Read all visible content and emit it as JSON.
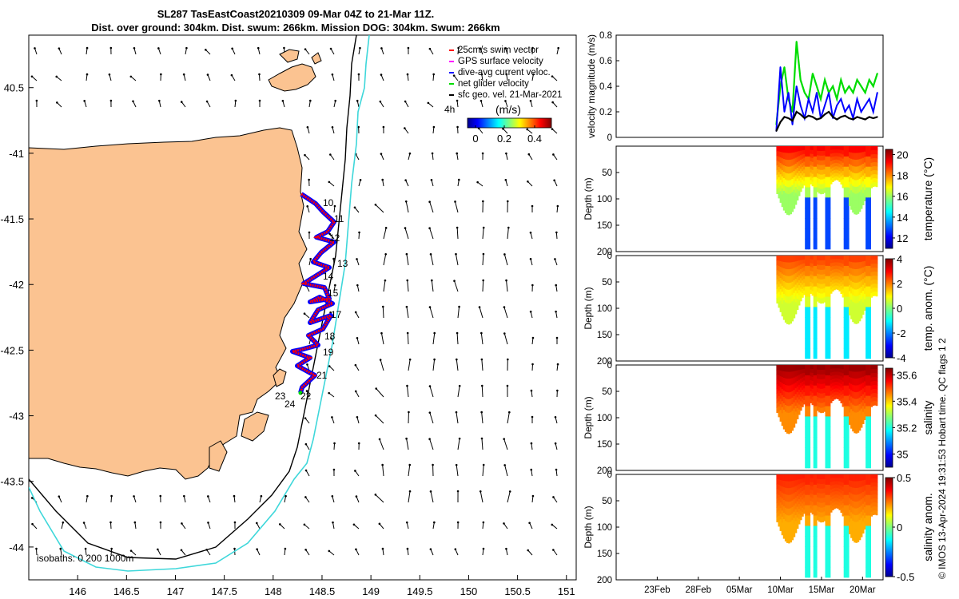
{
  "title": {
    "line1": "SL287 TasEastCoast20210309 09-Mar 04Z to 21-Mar 11Z.",
    "line2": "Dist. over ground: 304km. Dist. swum: 266km. Mission DOG: 304km. Swum: 266km"
  },
  "map": {
    "x_ticks": [
      "146",
      "146.5",
      "147",
      "147.5",
      "148",
      "148.5",
      "149",
      "149.5",
      "150",
      "150.5",
      "151"
    ],
    "y_ticks": [
      "40.5",
      "-41",
      "-41.5",
      "-42",
      "-42.5",
      "-43",
      "-43.5",
      "-44"
    ],
    "legend": [
      {
        "label": "25cm/s swim vector",
        "color": "#ff0000"
      },
      {
        "label": "GPS surface velocity",
        "color": "#ff00ff"
      },
      {
        "label": "dive-avg current veloc.",
        "color": "#0000ff"
      },
      {
        "label": "net glider velocity",
        "color": "#00dd00"
      },
      {
        "label": "sfc geo. vel. 21-Mar-2021",
        "color": "#000000"
      }
    ],
    "time_marker": "4h",
    "colorbar_title": "(m/s)",
    "colorbar_ticks": [
      "0",
      "0.2",
      "0.4"
    ],
    "isobaths_label": "isobaths: 0   200  1000m",
    "day_labels": [
      "10",
      "11",
      "12",
      "13",
      "14",
      "15",
      "17",
      "18",
      "19",
      "21",
      "22",
      "23",
      "24"
    ],
    "land_color": "#fbc391",
    "isobath_200_color": "#000000",
    "isobath_1000_color": "#3ed7da"
  },
  "chart_data": [
    {
      "type": "line",
      "title": "velocity",
      "ylabel": "velocity magnitude (m/s)",
      "ylim": [
        0,
        0.8
      ],
      "yticks": [
        "0",
        "0.2",
        "0.4",
        "0.6",
        "0.8"
      ],
      "series": [
        {
          "name": "net glider velocity",
          "color": "#00dd00"
        },
        {
          "name": "dive-avg current veloc.",
          "color": "#0000ff"
        },
        {
          "name": "sfc geo. vel.",
          "color": "#000000"
        }
      ],
      "x_range_days": [
        0,
        12.3
      ],
      "net_glider_speed": [
        0.1,
        0.4,
        0.55,
        0.3,
        0.2,
        0.75,
        0.45,
        0.35,
        0.3,
        0.5,
        0.4,
        0.3,
        0.45,
        0.35,
        0.4,
        0.3,
        0.45,
        0.35,
        0.4,
        0.35,
        0.45,
        0.4,
        0.35,
        0.45,
        0.4,
        0.5
      ],
      "dive_avg_speed": [
        0.05,
        0.55,
        0.2,
        0.35,
        0.1,
        0.4,
        0.25,
        0.15,
        0.3,
        0.2,
        0.35,
        0.15,
        0.25,
        0.35,
        0.15,
        0.25,
        0.3,
        0.2,
        0.25,
        0.15,
        0.3,
        0.2,
        0.25,
        0.3,
        0.2,
        0.35
      ],
      "sfc_geo_speed": [
        0.05,
        0.12,
        0.16,
        0.15,
        0.13,
        0.2,
        0.18,
        0.15,
        0.17,
        0.16,
        0.14,
        0.15,
        0.18,
        0.2,
        0.16,
        0.14,
        0.16,
        0.17,
        0.15,
        0.14,
        0.16,
        0.15,
        0.14,
        0.16,
        0.15,
        0.16
      ]
    },
    {
      "type": "heatmap",
      "ylabel": "Depth (m)",
      "cbar_label": "temperature (°C)",
      "ylim": [
        200,
        0
      ],
      "yticks": [
        "50",
        "100",
        "150",
        "200"
      ],
      "cbar_ticks": [
        "12",
        "14",
        "16",
        "18",
        "20"
      ],
      "clim": [
        11,
        20.5
      ],
      "top_value": 19.5,
      "bottom_value": 16.0,
      "dive_value": 12.8
    },
    {
      "type": "heatmap",
      "ylabel": "Depth (m)",
      "cbar_label": "temp. anom. (°C)",
      "ylim": [
        200,
        0
      ],
      "yticks": [
        "0",
        "50",
        "100",
        "150",
        "200"
      ],
      "cbar_ticks": [
        "4",
        "2",
        "0",
        "-2",
        "-4"
      ],
      "clim": [
        -4,
        4
      ],
      "top_value": 2.6,
      "bottom_value": 0.6,
      "dive_value": -1.2
    },
    {
      "type": "heatmap",
      "ylabel": "Depth (m)",
      "cbar_label": "salinity",
      "ylim": [
        200,
        0
      ],
      "yticks": [
        "0",
        "50",
        "100",
        "150",
        "200"
      ],
      "cbar_ticks": [
        "35.6",
        "35.4",
        "35.2",
        "35"
      ],
      "clim": [
        34.9,
        35.65
      ],
      "top_value": 35.64,
      "bottom_value": 35.45,
      "dive_value": 35.2
    },
    {
      "type": "heatmap",
      "ylabel": "Depth (m)",
      "cbar_label": "salinity anom.",
      "ylim": [
        200,
        0
      ],
      "yticks": [
        "0",
        "50",
        "100",
        "150",
        "200"
      ],
      "cbar_ticks": [
        "0.5",
        "0",
        "-0.5"
      ],
      "clim": [
        -0.5,
        0.5
      ],
      "top_value": 0.35,
      "bottom_value": 0.2,
      "dive_value": -0.1
    }
  ],
  "time_axis": {
    "ticks": [
      "23Feb",
      "28Feb",
      "05Mar",
      "10Mar",
      "15Mar",
      "20Mar"
    ]
  },
  "footer": "© IMOS 13-Apr-2024 19:31:53 Hobart time. QC flags 1  2"
}
